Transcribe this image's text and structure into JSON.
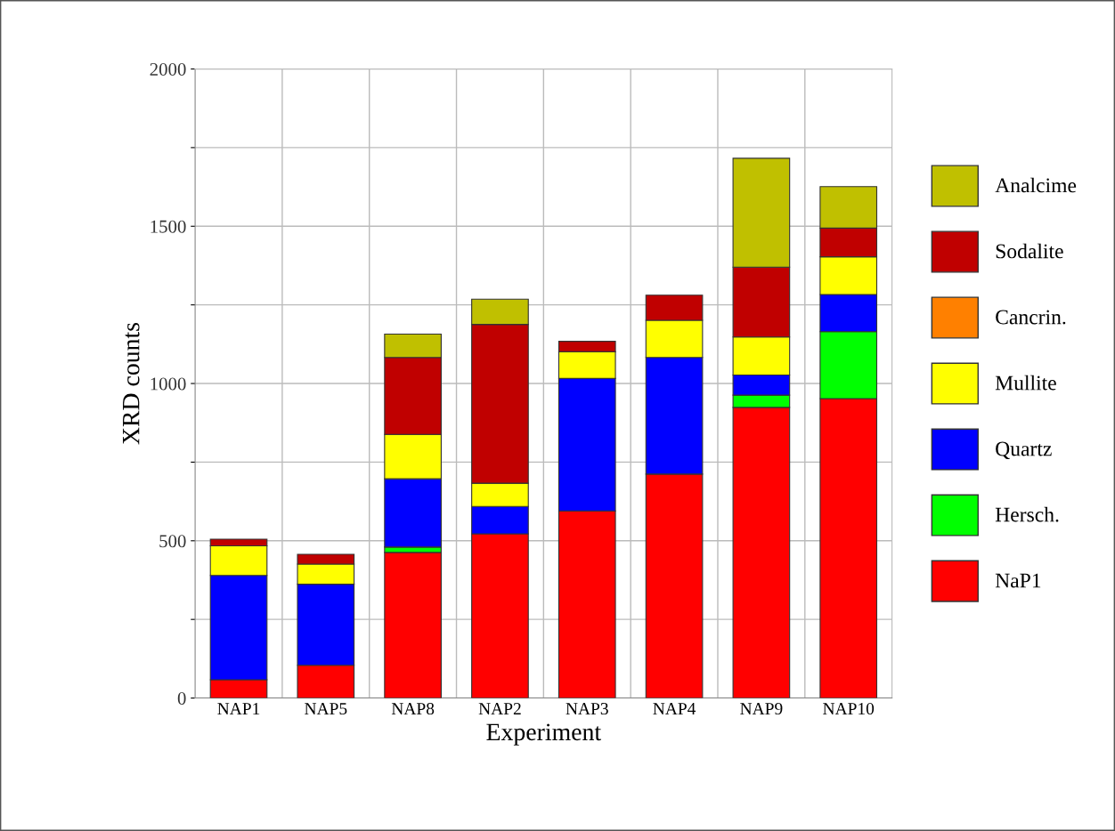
{
  "chart_data": {
    "type": "bar",
    "stacked": true,
    "xlabel": "Experiment",
    "ylabel": "XRD counts",
    "categories": [
      "NAP1",
      "NAP5",
      "NAP8",
      "NAP2",
      "NAP3",
      "NAP4",
      "NAP9",
      "NAP10"
    ],
    "series": [
      {
        "name": "NaP1",
        "color": "#ff0000",
        "values": [
          58,
          104,
          463,
          522,
          595,
          712,
          924,
          952
        ]
      },
      {
        "name": "Hersch.",
        "color": "#00ff00",
        "values": [
          0,
          0,
          17,
          0,
          0,
          0,
          39,
          213
        ]
      },
      {
        "name": "Quartz",
        "color": "#0000ff",
        "values": [
          332,
          258,
          217,
          87,
          421,
          371,
          64,
          118
        ]
      },
      {
        "name": "Mullite",
        "color": "#ffff00",
        "values": [
          94,
          64,
          141,
          74,
          85,
          118,
          121,
          120
        ]
      },
      {
        "name": "Cancrin.",
        "color": "#ff8000",
        "values": [
          0,
          0,
          0,
          0,
          0,
          0,
          0,
          0
        ]
      },
      {
        "name": "Sodalite",
        "color": "#c00000",
        "values": [
          21,
          31,
          245,
          505,
          33,
          80,
          222,
          91
        ]
      },
      {
        "name": "Analcime",
        "color": "#c0c000",
        "values": [
          0,
          0,
          74,
          80,
          0,
          0,
          346,
          132
        ]
      }
    ],
    "ylim": [
      0,
      2000
    ],
    "yticks": [
      0,
      {
        "value": 250,
        "label": null
      },
      500,
      {
        "value": 750,
        "label": null
      },
      1000,
      {
        "value": 1250,
        "label": null
      },
      1500,
      {
        "value": 1750,
        "label": null
      },
      2000
    ],
    "grid": true,
    "legend": "right"
  }
}
